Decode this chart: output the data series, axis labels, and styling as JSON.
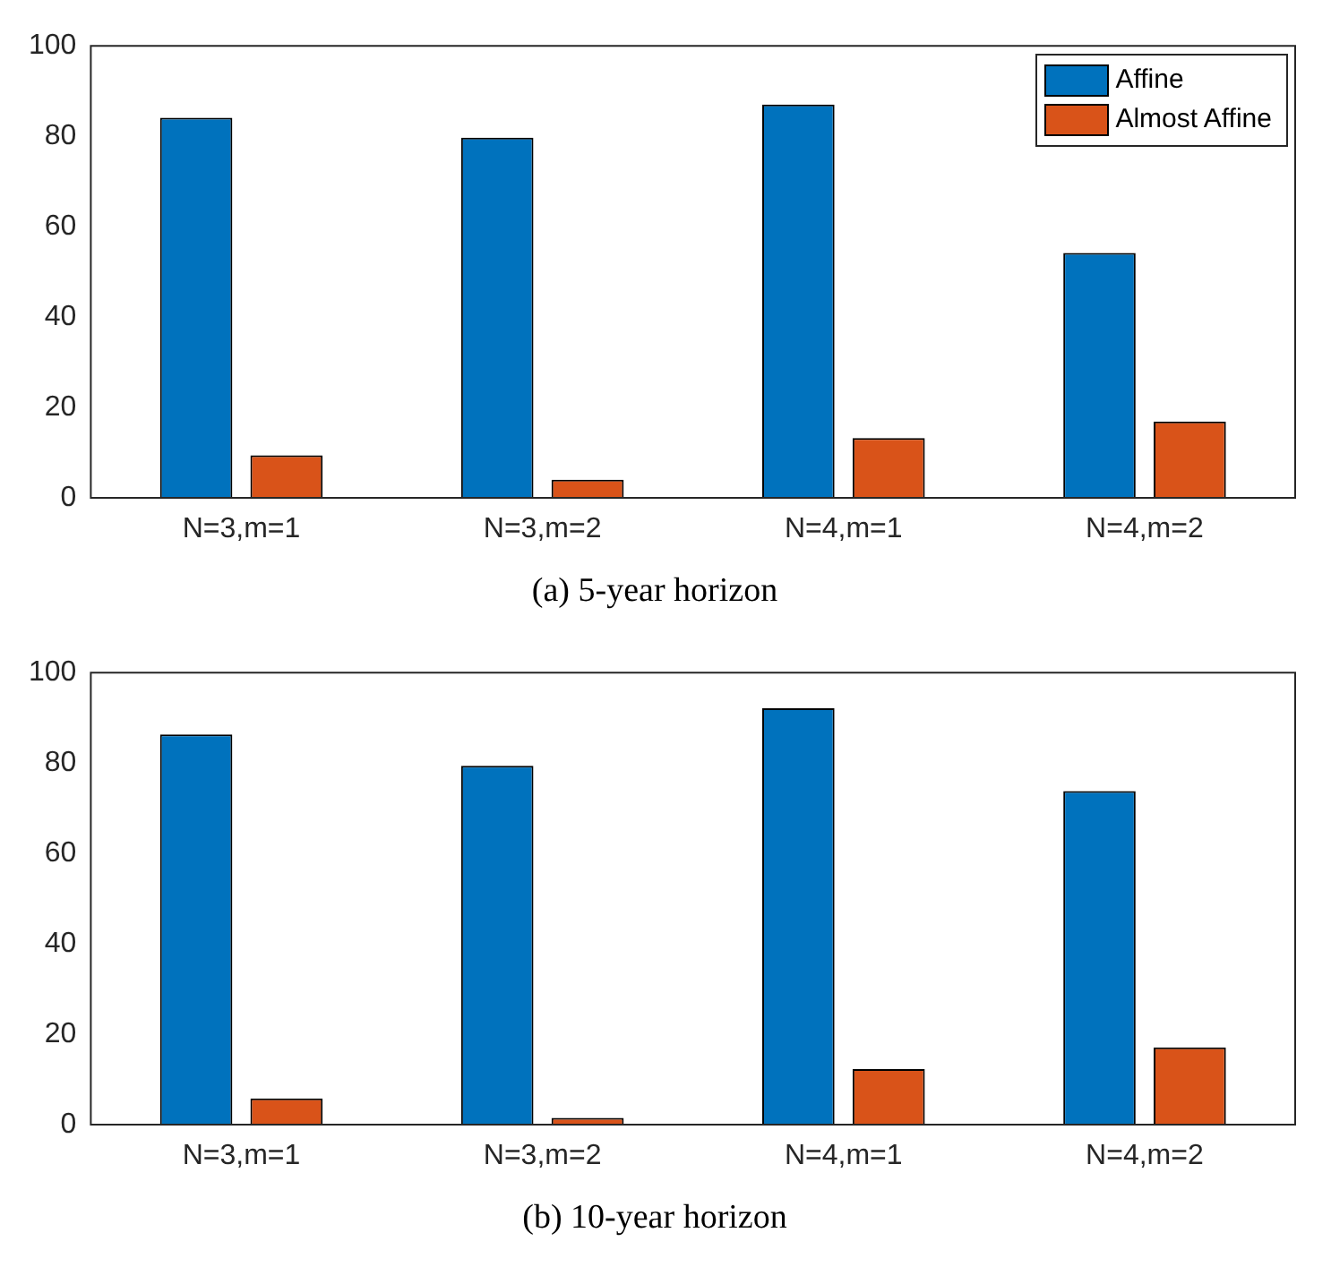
{
  "chart_data": [
    {
      "type": "bar",
      "title": "(a) 5-year horizon",
      "categories": [
        "N=3,m=1",
        "N=3,m=2",
        "N=4,m=1",
        "N=4,m=2"
      ],
      "series": [
        {
          "name": "Affine",
          "color": "#0072bd",
          "values": [
            84.1,
            79.7,
            87.0,
            54.2
          ]
        },
        {
          "name": "Almost Affine",
          "color": "#d95319",
          "values": [
            9.4,
            4.0,
            13.2,
            16.9
          ]
        }
      ],
      "ylim": [
        0,
        100
      ],
      "yticks": [
        0,
        20,
        40,
        60,
        80,
        100
      ],
      "grid": false,
      "legend": "top right"
    },
    {
      "type": "bar",
      "title": "(b) 10-year horizon",
      "categories": [
        "N=3,m=1",
        "N=3,m=2",
        "N=4,m=1",
        "N=4,m=2"
      ],
      "series": [
        {
          "color": "#0072bd",
          "values": [
            86.3,
            79.4,
            92.1,
            73.8
          ]
        },
        {
          "color": "#d95319",
          "values": [
            5.8,
            1.5,
            12.3,
            17.1
          ]
        }
      ],
      "ylim": [
        0,
        100
      ],
      "yticks": [
        0,
        20,
        40,
        60,
        80,
        100
      ],
      "grid": false,
      "legend": false
    }
  ]
}
